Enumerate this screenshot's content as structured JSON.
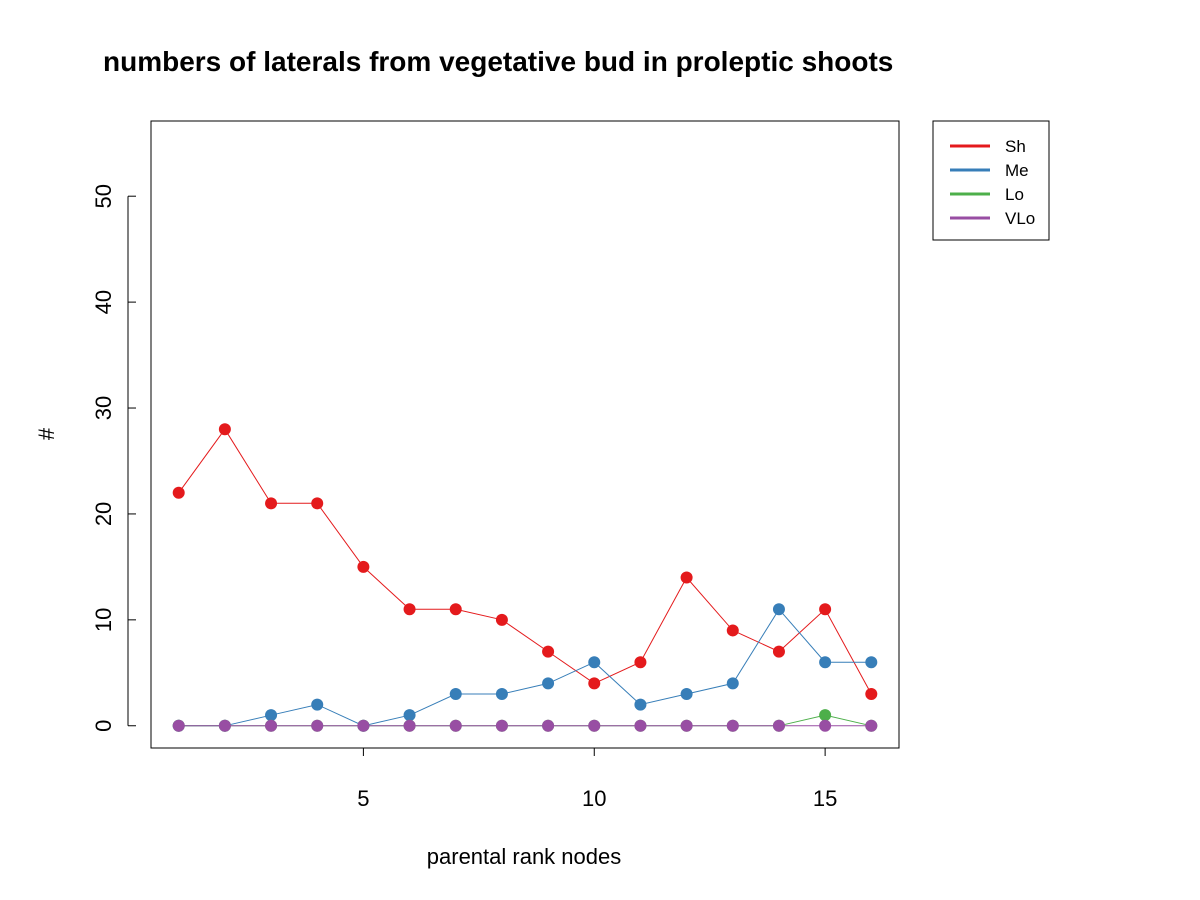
{
  "chart_data": {
    "type": "line",
    "title": "numbers of laterals from vegetative bud in proleptic shoots",
    "xlabel": "parental rank nodes",
    "ylabel": "#",
    "x": [
      1,
      2,
      3,
      4,
      5,
      6,
      7,
      8,
      9,
      10,
      11,
      12,
      13,
      14,
      15,
      16
    ],
    "xlim": [
      0.4,
      16.6
    ],
    "ylim": [
      -2.1,
      57.1
    ],
    "x_ticks": [
      5,
      10,
      15
    ],
    "y_ticks": [
      0,
      10,
      20,
      30,
      40,
      50
    ],
    "grid": false,
    "legend_position": "outside-top-right",
    "series": [
      {
        "name": "Sh",
        "color": "#e41a1c",
        "values": [
          22,
          28,
          21,
          21,
          15,
          11,
          11,
          10,
          7,
          4,
          6,
          14,
          9,
          7,
          11,
          3
        ]
      },
      {
        "name": "Me",
        "color": "#377eb8",
        "values": [
          0,
          0,
          1,
          2,
          0,
          1,
          3,
          3,
          4,
          6,
          2,
          3,
          4,
          11,
          6,
          6
        ]
      },
      {
        "name": "Lo",
        "color": "#4daf4a",
        "values": [
          0,
          0,
          0,
          0,
          0,
          0,
          0,
          0,
          0,
          0,
          0,
          0,
          0,
          0,
          1,
          0
        ]
      },
      {
        "name": "VLo",
        "color": "#984ea3",
        "values": [
          0,
          0,
          0,
          0,
          0,
          0,
          0,
          0,
          0,
          0,
          0,
          0,
          0,
          0,
          0,
          0
        ]
      }
    ]
  }
}
